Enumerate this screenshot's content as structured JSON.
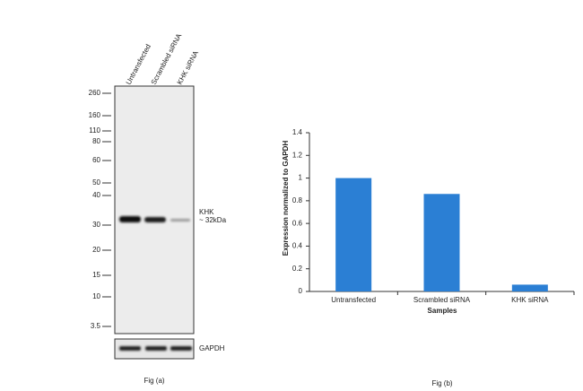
{
  "blot": {
    "lanes": [
      "Untransfected",
      "Scrambled siRNA",
      "KHK siRNA"
    ],
    "markers": [
      260,
      160,
      110,
      80,
      60,
      50,
      40,
      30,
      20,
      15,
      10,
      3.5
    ],
    "band_label": "KHK",
    "band_size": "~ 32kDa",
    "loading_control": "GAPDH",
    "caption": "Fig (a)"
  },
  "chart_data": {
    "type": "bar",
    "caption": "Fig (b)",
    "y_label": "Expression normalized to GAPDH",
    "x_label": "Samples",
    "categories": [
      "Untransfected",
      "Scrambled siRNA",
      "KHK siRNA"
    ],
    "values": [
      1,
      0.86,
      0.06
    ],
    "color": "#2b7fd4",
    "ylim": [
      0,
      1.4
    ],
    "yticks": [
      0,
      0.2,
      0.4,
      0.6,
      0.8,
      1,
      1.2,
      1.4
    ]
  }
}
